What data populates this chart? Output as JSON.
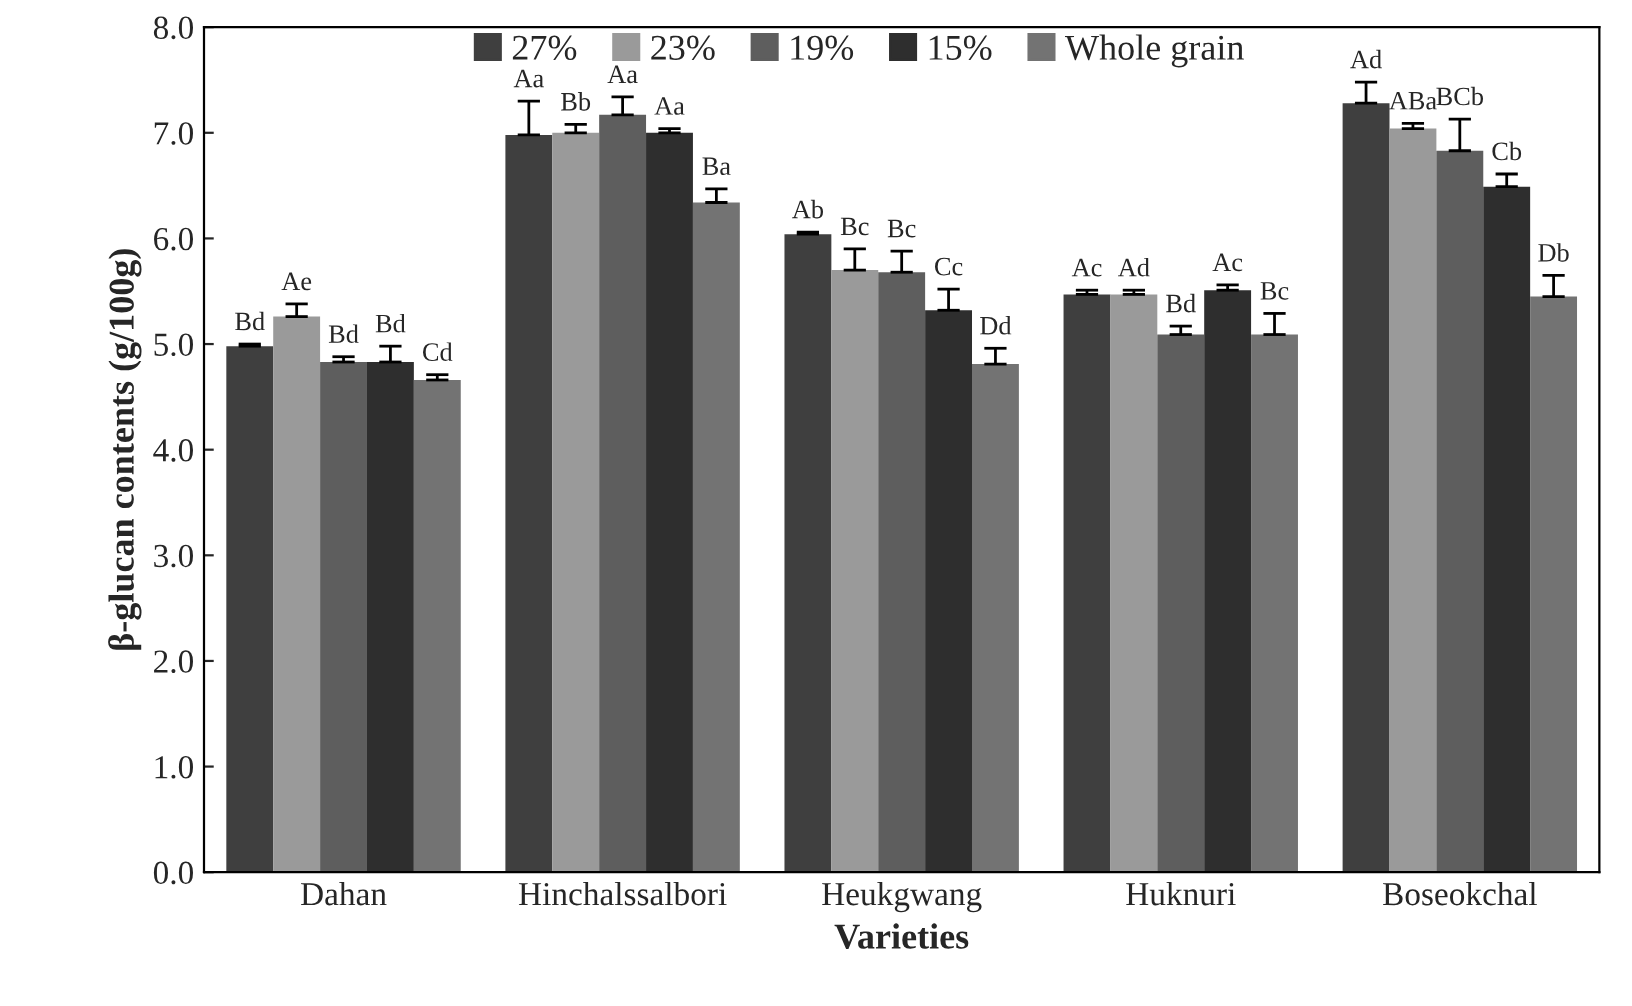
{
  "chart_data": {
    "type": "bar",
    "xlabel": "Varieties",
    "ylabel": "β-glucan contents (g/100g)",
    "categories": [
      "Dahan",
      "Hinchalssalbori",
      "Heukgwang",
      "Huknuri",
      "Boseokchal"
    ],
    "ylim": [
      0,
      8
    ],
    "yticks": [
      {
        "value": 0,
        "label": "0.0"
      },
      {
        "value": 1,
        "label": "1.0"
      },
      {
        "value": 2,
        "label": "2.0"
      },
      {
        "value": 3,
        "label": "3.0"
      },
      {
        "value": 4,
        "label": "4.0"
      },
      {
        "value": 5,
        "label": "5.0"
      },
      {
        "value": 6,
        "label": "6.0"
      },
      {
        "value": 7,
        "label": "7.0"
      },
      {
        "value": 8,
        "label": "8.0"
      }
    ],
    "grid": false,
    "legend": "top",
    "series": [
      {
        "name": "27%",
        "color": "#3f3f3f",
        "values": [
          4.98,
          6.98,
          6.04,
          5.47,
          7.28
        ],
        "errors": [
          [
            4.98,
            5.0
          ],
          [
            6.98,
            7.3
          ],
          [
            6.04,
            6.06
          ],
          [
            5.47,
            5.51
          ],
          [
            7.28,
            7.48
          ]
        ],
        "value_labels": [
          "Bd",
          "Aa",
          "Ab",
          "Ac",
          "Ad"
        ]
      },
      {
        "name": "23%",
        "color": "#9a9a9a",
        "values": [
          5.26,
          7.0,
          5.7,
          5.47,
          7.04
        ],
        "errors": [
          [
            5.26,
            5.38
          ],
          [
            7.0,
            7.08
          ],
          [
            5.7,
            5.9
          ],
          [
            5.47,
            5.51
          ],
          [
            7.04,
            7.09
          ]
        ],
        "value_labels": [
          "Ae",
          "Bb",
          "Bc",
          "Ad",
          "ABa"
        ]
      },
      {
        "name": "19%",
        "color": "#5e5e5e",
        "values": [
          4.83,
          7.17,
          5.68,
          5.09,
          6.83
        ],
        "errors": [
          [
            4.83,
            4.88
          ],
          [
            7.17,
            7.34
          ],
          [
            5.68,
            5.88
          ],
          [
            5.09,
            5.17
          ],
          [
            6.83,
            7.13
          ]
        ],
        "value_labels": [
          "Bd",
          "Aa",
          "Bc",
          "Bd",
          "BCb"
        ]
      },
      {
        "name": "15%",
        "color": "#2e2e2e",
        "values": [
          4.83,
          7.0,
          5.32,
          5.51,
          6.49
        ],
        "errors": [
          [
            4.83,
            4.98
          ],
          [
            7.0,
            7.04
          ],
          [
            5.32,
            5.52
          ],
          [
            5.51,
            5.56
          ],
          [
            6.49,
            6.61
          ]
        ],
        "value_labels": [
          "Bd",
          "Aa",
          "Cc",
          "Ac",
          "Cb"
        ]
      },
      {
        "name": "Whole grain",
        "color": "#737373",
        "values": [
          4.66,
          6.34,
          4.81,
          5.09,
          5.45
        ],
        "errors": [
          [
            4.66,
            4.71
          ],
          [
            6.34,
            6.47
          ],
          [
            4.81,
            4.96
          ],
          [
            5.09,
            5.29
          ],
          [
            5.45,
            5.65
          ]
        ],
        "value_labels": [
          "Cd",
          "Ba",
          "Dd",
          "Bc",
          "Db"
        ]
      }
    ]
  }
}
